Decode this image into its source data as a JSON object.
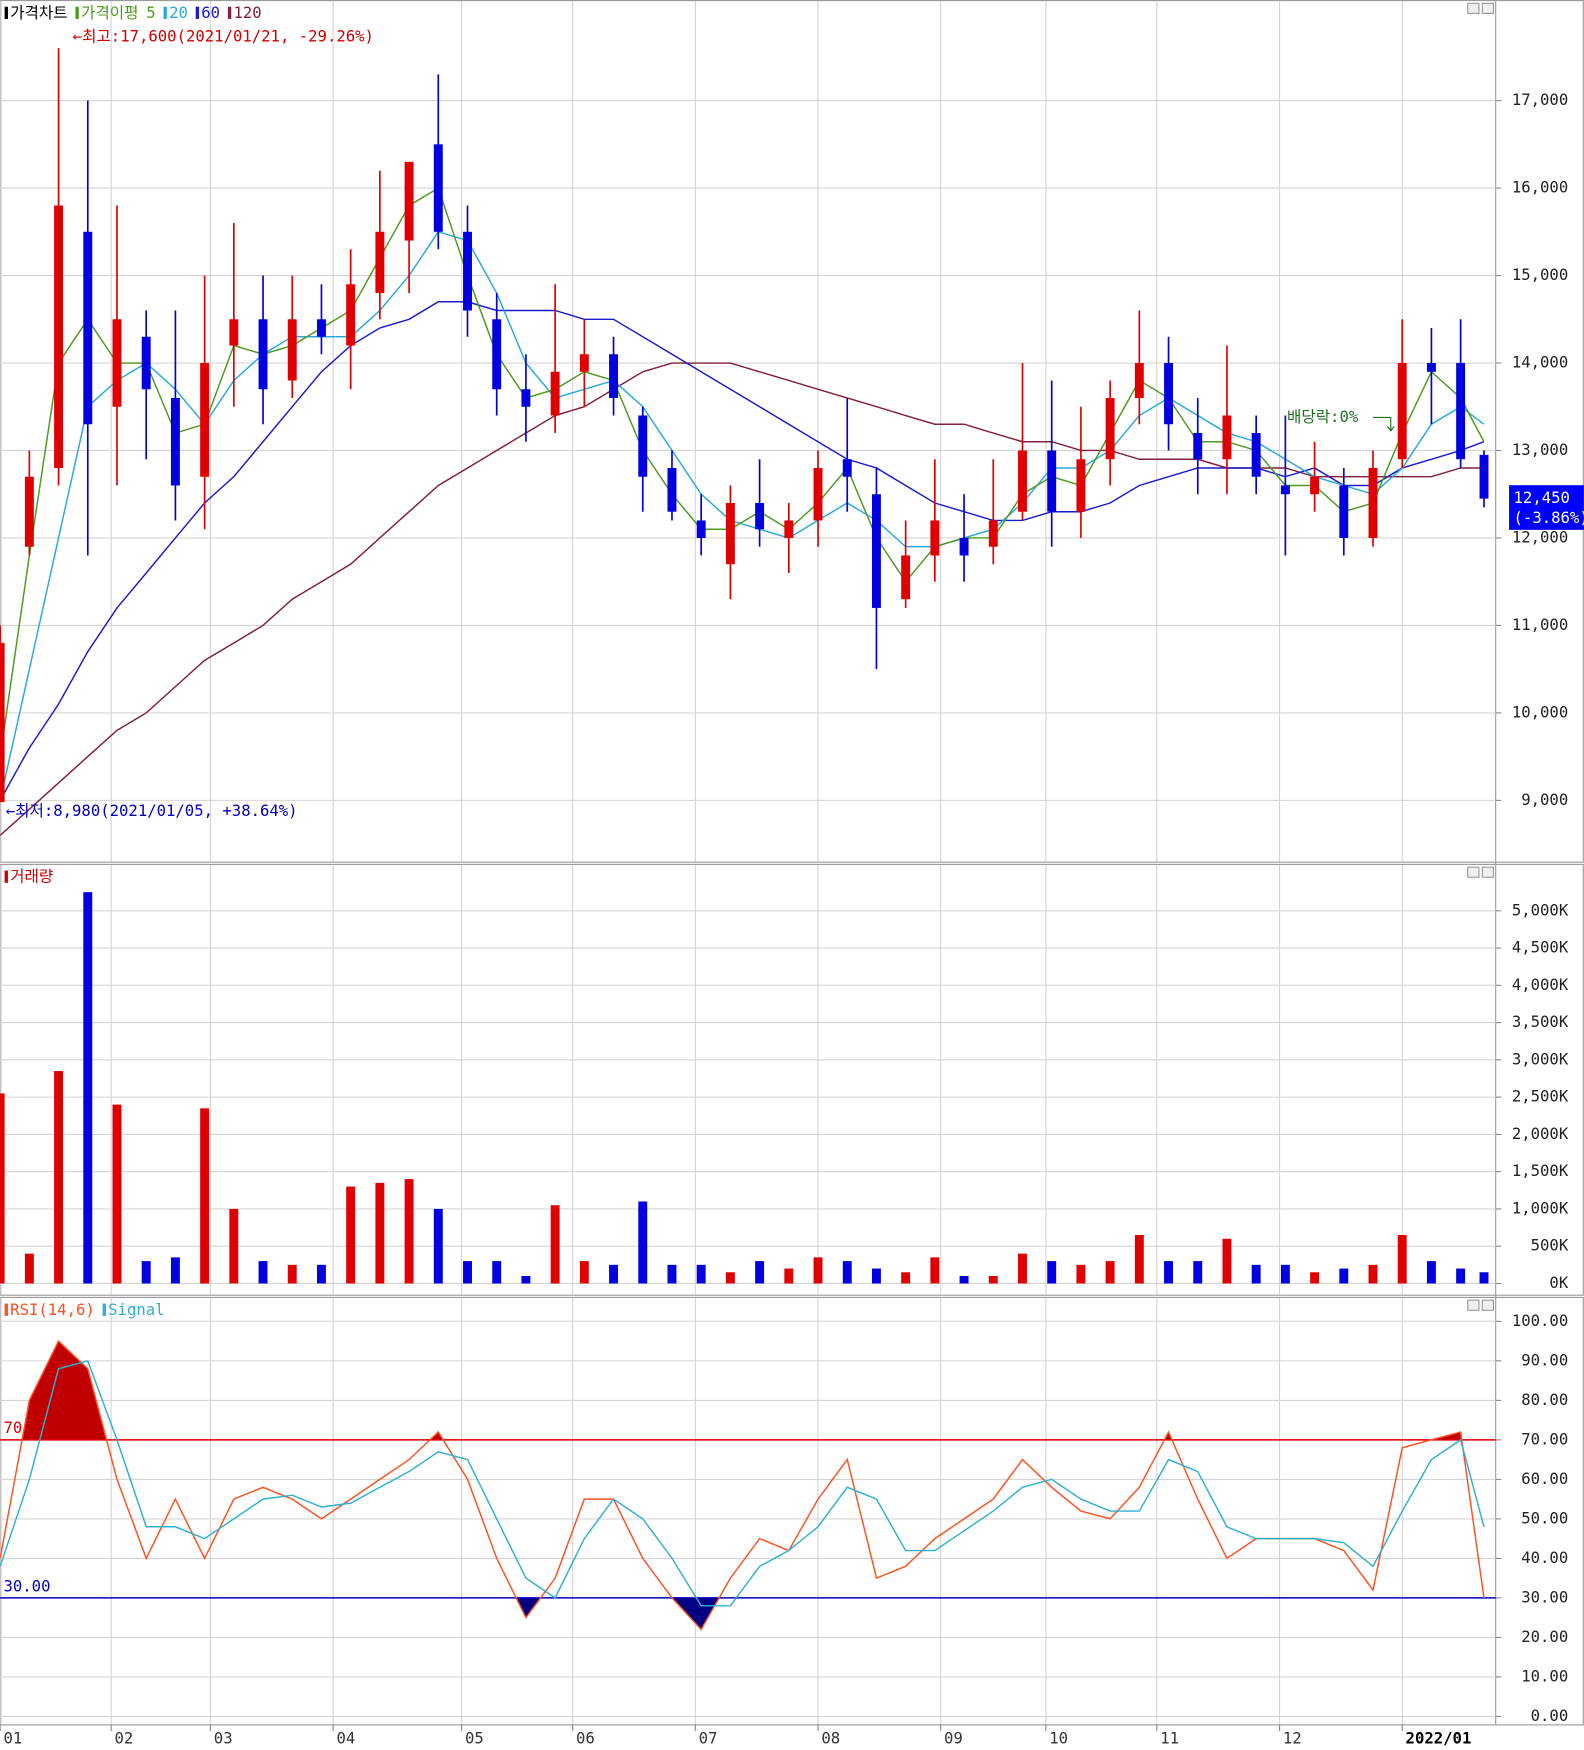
{
  "chart_data": [
    {
      "type": "candlestick",
      "title": "가격차트",
      "ma_legend_title": "가격이평",
      "x": [
        0,
        5,
        10,
        15,
        20,
        25,
        30,
        35,
        40,
        45,
        50,
        55,
        60,
        65,
        70,
        75,
        80,
        85,
        90,
        95,
        100,
        105,
        110,
        115,
        120,
        125,
        130,
        135,
        140,
        145,
        150,
        155,
        160,
        165,
        170,
        175,
        180,
        185,
        190,
        195,
        200,
        205,
        210,
        215,
        220,
        225,
        230,
        235,
        240,
        245,
        250,
        254
      ],
      "open": [
        8980,
        11900,
        12800,
        15500,
        13500,
        14300,
        13600,
        12700,
        14200,
        14500,
        13800,
        14500,
        14200,
        14800,
        15400,
        16500,
        15500,
        14500,
        13700,
        13400,
        13900,
        14100,
        13400,
        12800,
        12200,
        11700,
        12400,
        12000,
        12200,
        12900,
        12500,
        11300,
        11800,
        12000,
        11900,
        12300,
        13000,
        12300,
        12900,
        13600,
        14000,
        13200,
        12900,
        13200,
        12600,
        12500,
        12600,
        12000,
        12900,
        14000,
        14000,
        12950
      ],
      "high": [
        11000,
        13000,
        17600,
        17000,
        15800,
        14600,
        14600,
        15000,
        15600,
        15000,
        15000,
        14900,
        15300,
        16200,
        16300,
        17300,
        15800,
        14800,
        14100,
        14900,
        14500,
        14300,
        13500,
        13000,
        12500,
        12600,
        12900,
        12400,
        13000,
        13600,
        12800,
        12200,
        12900,
        12500,
        12900,
        14000,
        13800,
        13500,
        13800,
        14600,
        14300,
        13600,
        14200,
        13400,
        13400,
        13100,
        12800,
        13000,
        14500,
        14400,
        14500,
        13000
      ],
      "low": [
        8980,
        11800,
        12600,
        11800,
        12600,
        12900,
        12200,
        12100,
        13500,
        13300,
        13600,
        14100,
        13700,
        14500,
        14800,
        15300,
        14300,
        13400,
        13100,
        13200,
        13500,
        13400,
        12300,
        12200,
        11800,
        11300,
        11900,
        11600,
        11900,
        12300,
        10500,
        11200,
        11500,
        11500,
        11700,
        12200,
        11900,
        12000,
        12600,
        13300,
        13000,
        12500,
        12500,
        12500,
        11800,
        12300,
        11800,
        11900,
        12800,
        13300,
        12800,
        12350
      ],
      "close": [
        10800,
        12700,
        15800,
        13300,
        14500,
        13700,
        12600,
        14000,
        14500,
        13700,
        14500,
        14300,
        14900,
        15500,
        16300,
        15500,
        14600,
        13700,
        13500,
        13900,
        14100,
        13600,
        12700,
        12300,
        12000,
        12400,
        12100,
        12200,
        12800,
        12700,
        11200,
        11800,
        12200,
        11800,
        12200,
        13000,
        12300,
        12900,
        13600,
        14000,
        13300,
        12900,
        13400,
        12700,
        12500,
        12700,
        12000,
        12800,
        14000,
        13900,
        12900,
        12450
      ],
      "up_color": "#e00000",
      "down_color": "#0000e0",
      "series": [
        {
          "name": "5",
          "color": "#4c9a1f",
          "values": [
            9500,
            11800,
            14000,
            14500,
            14000,
            14000,
            13200,
            13300,
            14200,
            14100,
            14200,
            14400,
            14600,
            15200,
            15800,
            16000,
            15000,
            14100,
            13600,
            13700,
            13900,
            13800,
            13000,
            12500,
            12100,
            12100,
            12300,
            12100,
            12400,
            12800,
            12000,
            11500,
            11900,
            12000,
            12000,
            12500,
            12700,
            12600,
            13200,
            13800,
            13600,
            13100,
            13100,
            13000,
            12600,
            12600,
            12300,
            12400,
            13200,
            13900,
            13600,
            13100
          ]
        },
        {
          "name": "20",
          "color": "#2aa9d8",
          "values": [
            9000,
            10500,
            12000,
            13500,
            13800,
            14000,
            13700,
            13300,
            13800,
            14100,
            14300,
            14300,
            14300,
            14600,
            15000,
            15500,
            15400,
            14800,
            14000,
            13600,
            13700,
            13800,
            13500,
            13000,
            12500,
            12200,
            12100,
            12000,
            12200,
            12400,
            12200,
            11900,
            11900,
            12000,
            12100,
            12400,
            12800,
            12800,
            13000,
            13400,
            13600,
            13400,
            13200,
            13100,
            12900,
            12700,
            12600,
            12500,
            12800,
            13300,
            13500,
            13300
          ]
        },
        {
          "name": "60",
          "color": "#1a1ad0",
          "values": [
            9000,
            9600,
            10100,
            10700,
            11200,
            11600,
            12000,
            12400,
            12700,
            13100,
            13500,
            13900,
            14200,
            14400,
            14500,
            14700,
            14700,
            14600,
            14600,
            14600,
            14500,
            14500,
            14300,
            14100,
            13900,
            13700,
            13500,
            13300,
            13100,
            12900,
            12800,
            12600,
            12400,
            12300,
            12200,
            12200,
            12300,
            12300,
            12400,
            12600,
            12700,
            12800,
            12800,
            12800,
            12700,
            12800,
            12600,
            12600,
            12800,
            12900,
            13000,
            13100
          ]
        },
        {
          "name": "120",
          "color": "#80203a",
          "values": [
            8600,
            8900,
            9200,
            9500,
            9800,
            10000,
            10300,
            10600,
            10800,
            11000,
            11300,
            11500,
            11700,
            12000,
            12300,
            12600,
            12800,
            13000,
            13200,
            13400,
            13500,
            13700,
            13900,
            14000,
            14000,
            14000,
            13900,
            13800,
            13700,
            13600,
            13500,
            13400,
            13300,
            13300,
            13200,
            13100,
            13100,
            13000,
            13000,
            12900,
            12900,
            12900,
            12800,
            12800,
            12800,
            12700,
            12700,
            12700,
            12700,
            12700,
            12800,
            12800
          ]
        }
      ],
      "xlim": [
        0,
        256
      ],
      "ylim": [
        8300,
        18150
      ],
      "yticks": [
        {
          "value": 9000,
          "label": "9,000"
        },
        {
          "value": 10000,
          "label": "10,000"
        },
        {
          "value": 11000,
          "label": "11,000"
        },
        {
          "value": 12000,
          "label": "12,000"
        },
        {
          "value": 13000,
          "label": "13,000"
        },
        {
          "value": 14000,
          "label": "14,000"
        },
        {
          "value": 15000,
          "label": "15,000"
        },
        {
          "value": 16000,
          "label": "16,000"
        },
        {
          "value": 17000,
          "label": "17,000"
        }
      ],
      "grid": true,
      "annotations": [
        {
          "text": "←최고:17,600(2021/01/21, -29.26%)",
          "color": "#d00000"
        },
        {
          "text": "←최저:8,980(2021/01/05, +38.64%)",
          "color": "#0000c0"
        },
        {
          "text": "배당락:0%",
          "color": "#207020"
        }
      ],
      "last_price": {
        "label": "12,450",
        "change": "(-3.86%)",
        "color": "#0000ff"
      }
    },
    {
      "type": "bar",
      "title": "거래량",
      "color": "#d00000",
      "x": [
        0,
        5,
        10,
        15,
        20,
        25,
        30,
        35,
        40,
        45,
        50,
        55,
        60,
        65,
        70,
        75,
        80,
        85,
        90,
        95,
        100,
        105,
        110,
        115,
        120,
        125,
        130,
        135,
        140,
        145,
        150,
        155,
        160,
        165,
        170,
        175,
        180,
        185,
        190,
        195,
        200,
        205,
        210,
        215,
        220,
        225,
        230,
        235,
        240,
        245,
        250,
        254
      ],
      "values": [
        2550,
        400,
        2850,
        5250,
        2400,
        300,
        350,
        2350,
        1000,
        300,
        250,
        250,
        1300,
        1350,
        1400,
        1000,
        300,
        300,
        100,
        1050,
        300,
        250,
        1100,
        250,
        250,
        150,
        300,
        200,
        350,
        300,
        200,
        150,
        350,
        100,
        100,
        400,
        300,
        250,
        300,
        650,
        300,
        300,
        600,
        250,
        250,
        150,
        200,
        250,
        650,
        300,
        200,
        150
      ],
      "xlim": [
        0,
        256
      ],
      "ylim": [
        -150,
        5630
      ],
      "yticks": [
        {
          "value": 0,
          "label": "0K"
        },
        {
          "value": 500,
          "label": "500K"
        },
        {
          "value": 1000,
          "label": "1,000K"
        },
        {
          "value": 1500,
          "label": "1,500K"
        },
        {
          "value": 2000,
          "label": "2,000K"
        },
        {
          "value": 2500,
          "label": "2,500K"
        },
        {
          "value": 3000,
          "label": "3,000K"
        },
        {
          "value": 3500,
          "label": "3,500K"
        },
        {
          "value": 4000,
          "label": "4,000K"
        },
        {
          "value": 4500,
          "label": "4,500K"
        },
        {
          "value": 5000,
          "label": "5,000K"
        }
      ],
      "grid": true
    },
    {
      "type": "line",
      "x": [
        0,
        5,
        10,
        15,
        20,
        25,
        30,
        35,
        40,
        45,
        50,
        55,
        60,
        65,
        70,
        75,
        80,
        85,
        90,
        95,
        100,
        105,
        110,
        115,
        120,
        125,
        130,
        135,
        140,
        145,
        150,
        155,
        160,
        165,
        170,
        175,
        180,
        185,
        190,
        195,
        200,
        205,
        210,
        215,
        220,
        225,
        230,
        235,
        240,
        245,
        250,
        254
      ],
      "series": [
        {
          "name": "RSI(14,6)",
          "color": "#ff5020",
          "values": [
            40,
            80,
            95,
            88,
            60,
            40,
            55,
            40,
            55,
            58,
            55,
            50,
            55,
            60,
            65,
            72,
            60,
            40,
            25,
            35,
            55,
            55,
            40,
            30,
            22,
            35,
            45,
            42,
            55,
            65,
            35,
            38,
            45,
            50,
            55,
            65,
            58,
            52,
            50,
            58,
            72,
            55,
            40,
            45,
            45,
            45,
            42,
            32,
            68,
            70,
            72,
            30
          ]
        },
        {
          "name": "Signal",
          "color": "#30b0d0",
          "values": [
            38,
            60,
            88,
            90,
            70,
            48,
            48,
            45,
            50,
            55,
            56,
            53,
            54,
            58,
            62,
            67,
            65,
            50,
            35,
            30,
            45,
            55,
            50,
            40,
            28,
            28,
            38,
            42,
            48,
            58,
            55,
            42,
            42,
            47,
            52,
            58,
            60,
            55,
            52,
            52,
            65,
            62,
            48,
            45,
            45,
            45,
            44,
            38,
            52,
            65,
            70,
            48
          ]
        }
      ],
      "hlines": [
        {
          "value": 70,
          "label": "70",
          "color": "#e00000",
          "fill": "#c00000"
        },
        {
          "value": 30,
          "label": "30.00",
          "color": "#0000c0",
          "fill": "#000080"
        }
      ],
      "xlim": [
        0,
        256
      ],
      "ylim": [
        -2,
        106.2
      ],
      "yticks": [
        {
          "value": 0,
          "label": "0.00"
        },
        {
          "value": 10,
          "label": "10.00"
        },
        {
          "value": 20,
          "label": "20.00"
        },
        {
          "value": 30,
          "label": "30.00"
        },
        {
          "value": 40,
          "label": "40.00"
        },
        {
          "value": 50,
          "label": "50.00"
        },
        {
          "value": 60,
          "label": "60.00"
        },
        {
          "value": 70,
          "label": "70.00"
        },
        {
          "value": 80,
          "label": "80.00"
        },
        {
          "value": 90,
          "label": "90.00"
        },
        {
          "value": 100,
          "label": "100.00"
        }
      ],
      "xticks": [
        {
          "value": 0,
          "label": "01"
        },
        {
          "value": 19,
          "label": "02"
        },
        {
          "value": 36,
          "label": "03"
        },
        {
          "value": 57,
          "label": "04"
        },
        {
          "value": 79,
          "label": "05"
        },
        {
          "value": 98,
          "label": "06"
        },
        {
          "value": 119,
          "label": "07"
        },
        {
          "value": 140,
          "label": "08"
        },
        {
          "value": 161,
          "label": "09"
        },
        {
          "value": 179,
          "label": "10"
        },
        {
          "value": 198,
          "label": "11"
        },
        {
          "value": 219,
          "label": "12"
        },
        {
          "value": 240,
          "label": "2022/01"
        }
      ],
      "grid": true
    }
  ]
}
